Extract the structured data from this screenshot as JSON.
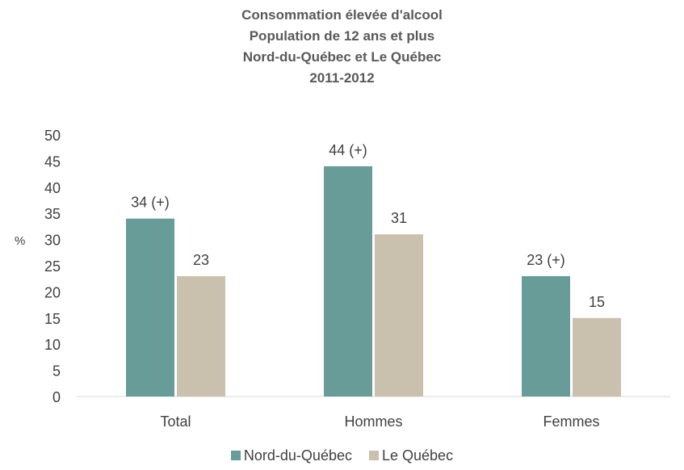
{
  "chart_data": {
    "type": "bar",
    "title_lines": [
      "Consommation élevée d'alcool",
      "Population de 12 ans et plus",
      "Nord-du-Québec et Le Québec",
      "2011-2012"
    ],
    "ylabel": "%",
    "xlabel": "",
    "ylim": [
      0,
      50
    ],
    "yticks": [
      0,
      5,
      10,
      15,
      20,
      25,
      30,
      35,
      40,
      45,
      50
    ],
    "categories": [
      "Total",
      "Hommes",
      "Femmes"
    ],
    "series": [
      {
        "name": "Nord-du-Québec",
        "color": "#679c99",
        "values": [
          34,
          44,
          23
        ],
        "labels": [
          "34 (+)",
          "44 (+)",
          "23 (+)"
        ]
      },
      {
        "name": "Le Québec",
        "color": "#c9c1ad",
        "values": [
          23,
          31,
          15
        ],
        "labels": [
          "23",
          "31",
          "15"
        ]
      }
    ],
    "grid": false,
    "legend_position": "bottom"
  }
}
